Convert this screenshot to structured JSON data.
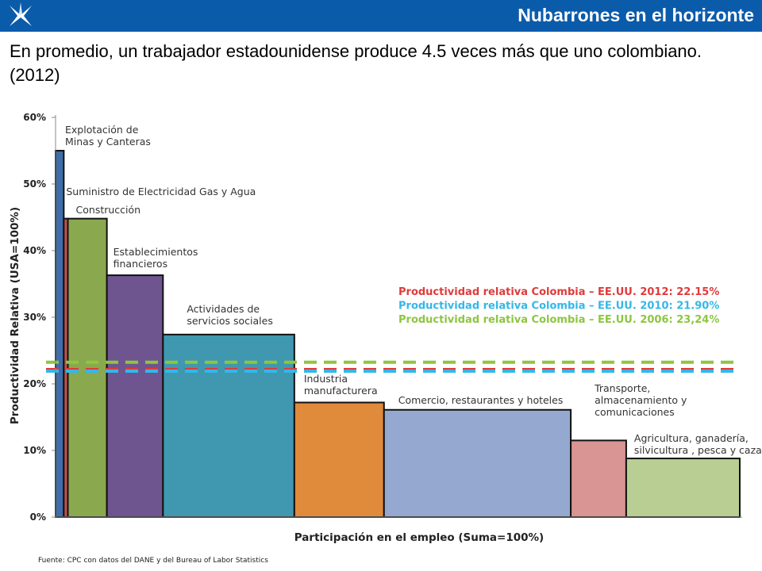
{
  "header": {
    "title": "Nubarrones en el horizonte",
    "logo_icon": "star-logo-icon"
  },
  "subtitle": "En promedio, un trabajador estadounidense produce 4.5 veces más que uno colombiano. (2012)",
  "source": "Fuente: CPC con datos del DANE y del Bureau of Labor Statistics",
  "chart_data": {
    "type": "bar",
    "xlabel": "Participación en el empleo (Suma=100%)",
    "ylabel": "Productividad Relativa (USA=100%)",
    "ylim": [
      0,
      60
    ],
    "xlim": [
      0,
      100
    ],
    "yticks": [
      "0%",
      "10%",
      "20%",
      "30%",
      "40%",
      "50%",
      "60%"
    ],
    "sectors": [
      {
        "label_lines": [
          "Explotación de",
          "Minas y Canteras"
        ],
        "employment_share": 1.2,
        "value": 55.0,
        "color": "#3f6ea8"
      },
      {
        "label_lines": [
          "Suministro de Electricidad Gas y Agua"
        ],
        "employment_share": 0.6,
        "value": 44.8,
        "color": "#c0504d"
      },
      {
        "label_lines": [
          "Construcción"
        ],
        "employment_share": 5.7,
        "value": 44.8,
        "color": "#8aa84e"
      },
      {
        "label_lines": [
          "Establecimientos",
          "financieros"
        ],
        "employment_share": 8.2,
        "value": 36.3,
        "color": "#6e5590"
      },
      {
        "label_lines": [
          "Actividades de",
          "servicios sociales"
        ],
        "employment_share": 19.2,
        "value": 27.4,
        "color": "#3f98b0"
      },
      {
        "label_lines": [
          "Industria",
          "manufacturera"
        ],
        "employment_share": 13.1,
        "value": 17.2,
        "color": "#e08a3c"
      },
      {
        "label_lines": [
          "Comercio, restaurantes y hoteles"
        ],
        "employment_share": 27.3,
        "value": 16.1,
        "color": "#95a9d0"
      },
      {
        "label_lines": [
          "Transporte,",
          "almacenamiento y",
          "comunicaciones"
        ],
        "employment_share": 8.1,
        "value": 11.5,
        "color": "#d99593"
      },
      {
        "label_lines": [
          "Agricultura, ganadería,",
          "silvicultura , pesca y caza"
        ],
        "employment_share": 16.6,
        "value": 8.8,
        "color": "#b9ce93"
      }
    ],
    "reference_lines": [
      {
        "label": "Productividad relativa Colombia – EE.UU. 2012: 22.15%",
        "value": 22.15,
        "color": "#e03a3a"
      },
      {
        "label": "Productividad relativa Colombia – EE.UU. 2010: 21.90%",
        "value": 21.9,
        "color": "#34b7e8"
      },
      {
        "label": "Productividad relativa Colombia – EE.UU. 2006: 23,24%",
        "value": 23.24,
        "color": "#8dc63f"
      }
    ]
  }
}
